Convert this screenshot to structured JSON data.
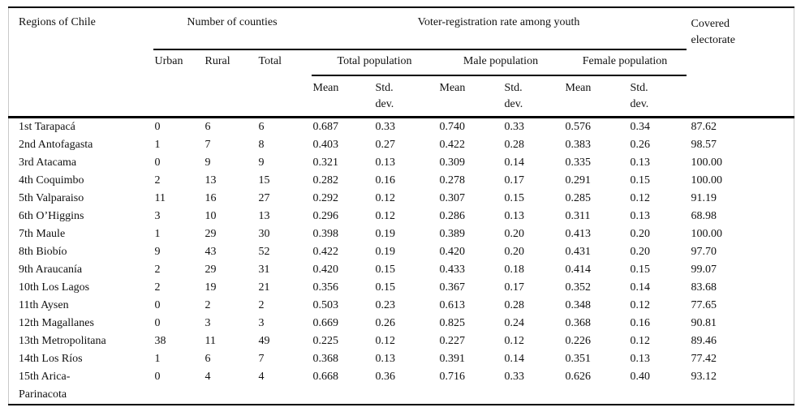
{
  "page": {
    "background": "#ffffff",
    "text_color": "#111111",
    "rule_color": "#000000",
    "frame_color": "#c9c9c9"
  },
  "table": {
    "headers": {
      "region": "Regions of Chile",
      "counties_group": "Number of counties",
      "voter_group": "Voter-registration rate among youth",
      "covered": "Covered\nelectorate",
      "urban": "Urban",
      "rural": "Rural",
      "total": "Total",
      "total_pop_group": "Total population",
      "male_pop_group": "Male population",
      "female_pop_group": "Female population",
      "mean": "Mean",
      "std_dev": "Std.\ndev."
    },
    "column_keys": [
      "region",
      "urban",
      "rural",
      "total",
      "t_mean",
      "t_std",
      "m_mean",
      "m_std",
      "f_mean",
      "f_std",
      "covered"
    ],
    "rows": [
      {
        "region": "1st Tarapacá",
        "urban": "0",
        "rural": "6",
        "total": "6",
        "t_mean": "0.687",
        "t_std": "0.33",
        "m_mean": "0.740",
        "m_std": "0.33",
        "f_mean": "0.576",
        "f_std": "0.34",
        "covered": "87.62"
      },
      {
        "region": "2nd Antofagasta",
        "urban": "1",
        "rural": "7",
        "total": "8",
        "t_mean": "0.403",
        "t_std": "0.27",
        "m_mean": "0.422",
        "m_std": "0.28",
        "f_mean": "0.383",
        "f_std": "0.26",
        "covered": "98.57"
      },
      {
        "region": "3rd Atacama",
        "urban": "0",
        "rural": "9",
        "total": "9",
        "t_mean": "0.321",
        "t_std": "0.13",
        "m_mean": "0.309",
        "m_std": "0.14",
        "f_mean": "0.335",
        "f_std": "0.13",
        "covered": "100.00"
      },
      {
        "region": "4th Coquimbo",
        "urban": "2",
        "rural": "13",
        "total": "15",
        "t_mean": "0.282",
        "t_std": "0.16",
        "m_mean": "0.278",
        "m_std": "0.17",
        "f_mean": "0.291",
        "f_std": "0.15",
        "covered": "100.00"
      },
      {
        "region": "5th Valparaiso",
        "urban": "11",
        "rural": "16",
        "total": "27",
        "t_mean": "0.292",
        "t_std": "0.12",
        "m_mean": "0.307",
        "m_std": "0.15",
        "f_mean": "0.285",
        "f_std": "0.12",
        "covered": "91.19"
      },
      {
        "region": "6th O’Higgins",
        "urban": "3",
        "rural": "10",
        "total": "13",
        "t_mean": "0.296",
        "t_std": "0.12",
        "m_mean": "0.286",
        "m_std": "0.13",
        "f_mean": "0.311",
        "f_std": "0.13",
        "covered": "68.98"
      },
      {
        "region": "7th Maule",
        "urban": "1",
        "rural": "29",
        "total": "30",
        "t_mean": "0.398",
        "t_std": "0.19",
        "m_mean": "0.389",
        "m_std": "0.20",
        "f_mean": "0.413",
        "f_std": "0.20",
        "covered": "100.00"
      },
      {
        "region": "8th Biobío",
        "urban": "9",
        "rural": "43",
        "total": "52",
        "t_mean": "0.422",
        "t_std": "0.19",
        "m_mean": "0.420",
        "m_std": "0.20",
        "f_mean": "0.431",
        "f_std": "0.20",
        "covered": "97.70"
      },
      {
        "region": "9th Araucanía",
        "urban": "2",
        "rural": "29",
        "total": "31",
        "t_mean": "0.420",
        "t_std": "0.15",
        "m_mean": "0.433",
        "m_std": "0.18",
        "f_mean": "0.414",
        "f_std": "0.15",
        "covered": "99.07"
      },
      {
        "region": "10th Los Lagos",
        "urban": "2",
        "rural": "19",
        "total": "21",
        "t_mean": "0.356",
        "t_std": "0.15",
        "m_mean": "0.367",
        "m_std": "0.17",
        "f_mean": "0.352",
        "f_std": "0.14",
        "covered": "83.68"
      },
      {
        "region": "11th Aysen",
        "urban": "0",
        "rural": "2",
        "total": "2",
        "t_mean": "0.503",
        "t_std": "0.23",
        "m_mean": "0.613",
        "m_std": "0.28",
        "f_mean": "0.348",
        "f_std": "0.12",
        "covered": "77.65"
      },
      {
        "region": "12th Magallanes",
        "urban": "0",
        "rural": "3",
        "total": "3",
        "t_mean": "0.669",
        "t_std": "0.26",
        "m_mean": "0.825",
        "m_std": "0.24",
        "f_mean": "0.368",
        "f_std": "0.16",
        "covered": "90.81"
      },
      {
        "region": "13th Metropolitana",
        "urban": "38",
        "rural": "11",
        "total": "49",
        "t_mean": "0.225",
        "t_std": "0.12",
        "m_mean": "0.227",
        "m_std": "0.12",
        "f_mean": "0.226",
        "f_std": "0.12",
        "covered": "89.46"
      },
      {
        "region": "14th Los Ríos",
        "urban": "1",
        "rural": "6",
        "total": "7",
        "t_mean": "0.368",
        "t_std": "0.13",
        "m_mean": "0.391",
        "m_std": "0.14",
        "f_mean": "0.351",
        "f_std": "0.13",
        "covered": "77.42"
      },
      {
        "region": "15th Arica-\nParinacota",
        "urban": "0",
        "rural": "4",
        "total": "4",
        "t_mean": "0.668",
        "t_std": "0.36",
        "m_mean": "0.716",
        "m_std": "0.33",
        "f_mean": "0.626",
        "f_std": "0.40",
        "covered": "93.12"
      }
    ]
  }
}
